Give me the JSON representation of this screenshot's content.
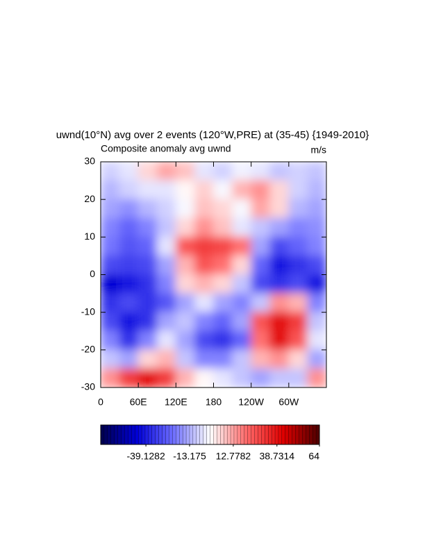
{
  "chart_data": {
    "type": "contour",
    "title": "uwnd(10°N) avg over 2 events (120°W,PRE) at (35-45) {1949-2010}",
    "subtitle_left": "Composite anomaly avg uwnd",
    "subtitle_right": "m/s",
    "x": [
      15,
      45,
      75,
      105,
      135,
      165,
      195,
      225,
      255,
      285,
      315,
      345
    ],
    "y": [
      27.5,
      22.5,
      17.5,
      12.5,
      7.5,
      2.5,
      -2.5,
      -7.5,
      -12.5,
      -17.5,
      -22.5,
      -27.5
    ],
    "values": [
      [
        -8,
        -5,
        5,
        12,
        8,
        -5,
        -8,
        -3,
        -5,
        -10,
        -8,
        -10
      ],
      [
        -12,
        -8,
        -5,
        -5,
        0,
        6,
        -2,
        10,
        15,
        5,
        -8,
        -12
      ],
      [
        -15,
        -18,
        -12,
        -8,
        -2,
        8,
        5,
        -2,
        12,
        5,
        -12,
        -15
      ],
      [
        -20,
        -25,
        -20,
        -10,
        5,
        15,
        8,
        -5,
        -10,
        -15,
        -20,
        -18
      ],
      [
        -22,
        -28,
        -25,
        -5,
        25,
        30,
        28,
        20,
        -15,
        -30,
        -25,
        -20
      ],
      [
        -30,
        -32,
        -30,
        -15,
        10,
        25,
        20,
        5,
        -25,
        -40,
        -35,
        -30
      ],
      [
        -45,
        -40,
        -35,
        -20,
        5,
        10,
        5,
        -10,
        -30,
        -35,
        -30,
        -40
      ],
      [
        -35,
        -30,
        -35,
        -28,
        -15,
        -5,
        -15,
        -20,
        -10,
        15,
        10,
        -20
      ],
      [
        -30,
        -40,
        -35,
        -15,
        -10,
        -20,
        -25,
        -15,
        25,
        40,
        30,
        -10
      ],
      [
        -20,
        -35,
        -20,
        -5,
        -15,
        -30,
        -35,
        -25,
        20,
        40,
        25,
        -5
      ],
      [
        -10,
        -15,
        5,
        10,
        -10,
        -20,
        -20,
        -10,
        10,
        15,
        5,
        -15
      ],
      [
        15,
        30,
        40,
        30,
        10,
        0,
        -5,
        -10,
        -15,
        -10,
        -10,
        15
      ]
    ],
    "xlim": [
      0,
      360
    ],
    "ylim": [
      -30,
      30
    ],
    "xticks": [
      0,
      {
        "value": 60,
        "label": "60E"
      },
      {
        "value": 120,
        "label": "120E"
      },
      180,
      {
        "value": 240,
        "label": "120W"
      },
      {
        "value": 300,
        "label": "60W"
      }
    ],
    "yticks": [
      -30,
      -20,
      -10,
      0,
      10,
      20,
      30
    ],
    "clim": [
      -66,
      64
    ],
    "colorbar_ticks": [
      -39.1282,
      -13.175,
      12.7782,
      38.7314,
      64
    ],
    "colors": [
      "#00004c",
      "#0000d8",
      "#7070ff",
      "#ffffff",
      "#ff6a6a",
      "#e00000",
      "#4c0000"
    ]
  }
}
